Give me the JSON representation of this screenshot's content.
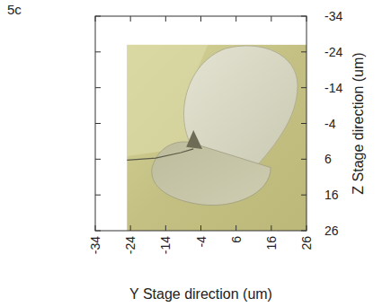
{
  "chart_data": {
    "type": "image",
    "title": "5c",
    "x_label": "Y Stage direction (um)",
    "y_label": "Z Stage direction (um)",
    "xlim": [
      -34,
      26
    ],
    "ylim": [
      -34,
      26
    ],
    "xticks": [
      -34,
      -24,
      -14,
      -4,
      6,
      16,
      26
    ],
    "yticks": [
      -34,
      -24,
      -14,
      -4,
      6,
      16,
      26
    ],
    "image_extent": {
      "x": [
        -25,
        26
      ],
      "y": [
        -26,
        26
      ]
    },
    "grid": false
  }
}
